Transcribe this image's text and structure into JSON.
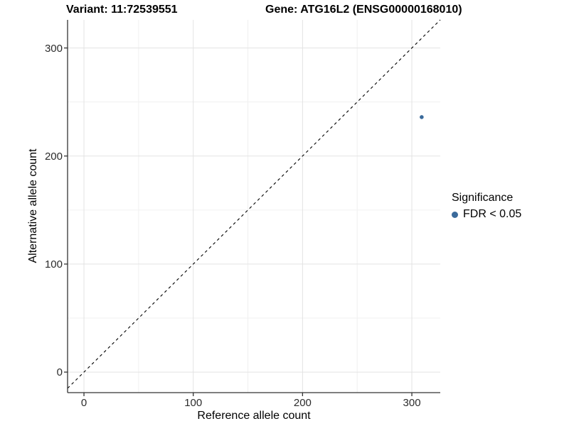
{
  "header": {
    "variant_title": "Variant: 11:72539551",
    "gene_title": "Gene: ATG16L2 (ENSG00000168010)"
  },
  "legend": {
    "title": "Significance",
    "items": [
      {
        "label": "FDR < 0.05",
        "color": "#3a6a9b"
      }
    ]
  },
  "chart_data": {
    "type": "scatter",
    "xlabel": "Reference allele count",
    "ylabel": "Alternative allele count",
    "x_ticks": [
      0,
      100,
      200,
      300
    ],
    "y_ticks": [
      0,
      100,
      200,
      300
    ],
    "x_minor_ticks": [
      50,
      150,
      250
    ],
    "y_minor_ticks": [
      50,
      150,
      250
    ],
    "xlim": [
      -15,
      326
    ],
    "ylim": [
      -19,
      326
    ],
    "grid": true,
    "legend_position": "right",
    "identity_line": {
      "equation": "y = x",
      "style": "dashed",
      "color": "#000000"
    },
    "series": [
      {
        "name": "FDR < 0.05",
        "color": "#3a6a9b",
        "points": [
          {
            "x": 309,
            "y": 236
          }
        ]
      }
    ],
    "colors": {
      "axis_line": "#333333",
      "major_grid": "#e3e3e3",
      "minor_grid": "#f0f0f0",
      "background": "#ffffff"
    }
  }
}
